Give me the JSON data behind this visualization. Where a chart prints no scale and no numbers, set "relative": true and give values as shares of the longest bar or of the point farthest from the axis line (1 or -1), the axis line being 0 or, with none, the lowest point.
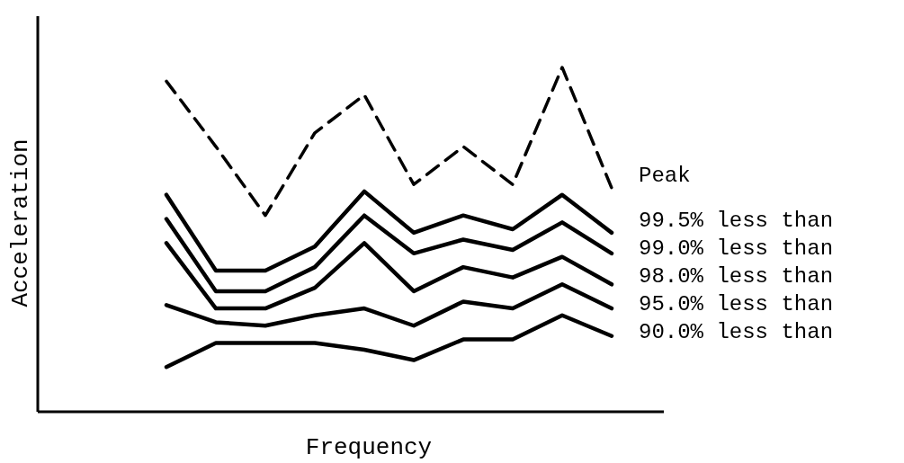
{
  "chart_data": {
    "type": "line",
    "relative": true,
    "xlabel": "Frequency",
    "ylabel": "Acceleration",
    "grid": false,
    "legend": false,
    "marker": "none",
    "categories": [
      null,
      null,
      null,
      null,
      null,
      null,
      null,
      null,
      null,
      null
    ],
    "series": [
      {
        "name": "Peak",
        "color": "#000000",
        "line_style": "dashed",
        "values": [
          0.96,
          0.77,
          0.57,
          0.81,
          0.92,
          0.66,
          0.77,
          0.66,
          1,
          0.65
        ]
      },
      {
        "name": "99.5% less than",
        "color": "#000000",
        "line_style": "solid",
        "values": [
          0.63,
          0.41,
          0.41,
          0.48,
          0.64,
          0.52,
          0.57,
          0.53,
          0.63,
          0.52
        ]
      },
      {
        "name": "99.0% less than",
        "color": "#000000",
        "line_style": "solid",
        "values": [
          0.56,
          0.35,
          0.35,
          0.42,
          0.57,
          0.46,
          0.5,
          0.47,
          0.55,
          0.46
        ]
      },
      {
        "name": "98.0% less than",
        "color": "#000000",
        "line_style": "solid",
        "values": [
          0.49,
          0.3,
          0.3,
          0.36,
          0.49,
          0.35,
          0.42,
          0.39,
          0.45,
          0.37
        ]
      },
      {
        "name": "95.0% less than",
        "color": "#000000",
        "line_style": "solid",
        "values": [
          0.31,
          0.26,
          0.25,
          0.28,
          0.3,
          0.25,
          0.32,
          0.3,
          0.37,
          0.3
        ]
      },
      {
        "name": "90.0% less than",
        "color": "#000000",
        "line_style": "solid",
        "values": [
          0.13,
          0.2,
          0.2,
          0.2,
          0.18,
          0.15,
          0.21,
          0.21,
          0.28,
          0.22
        ]
      }
    ]
  }
}
